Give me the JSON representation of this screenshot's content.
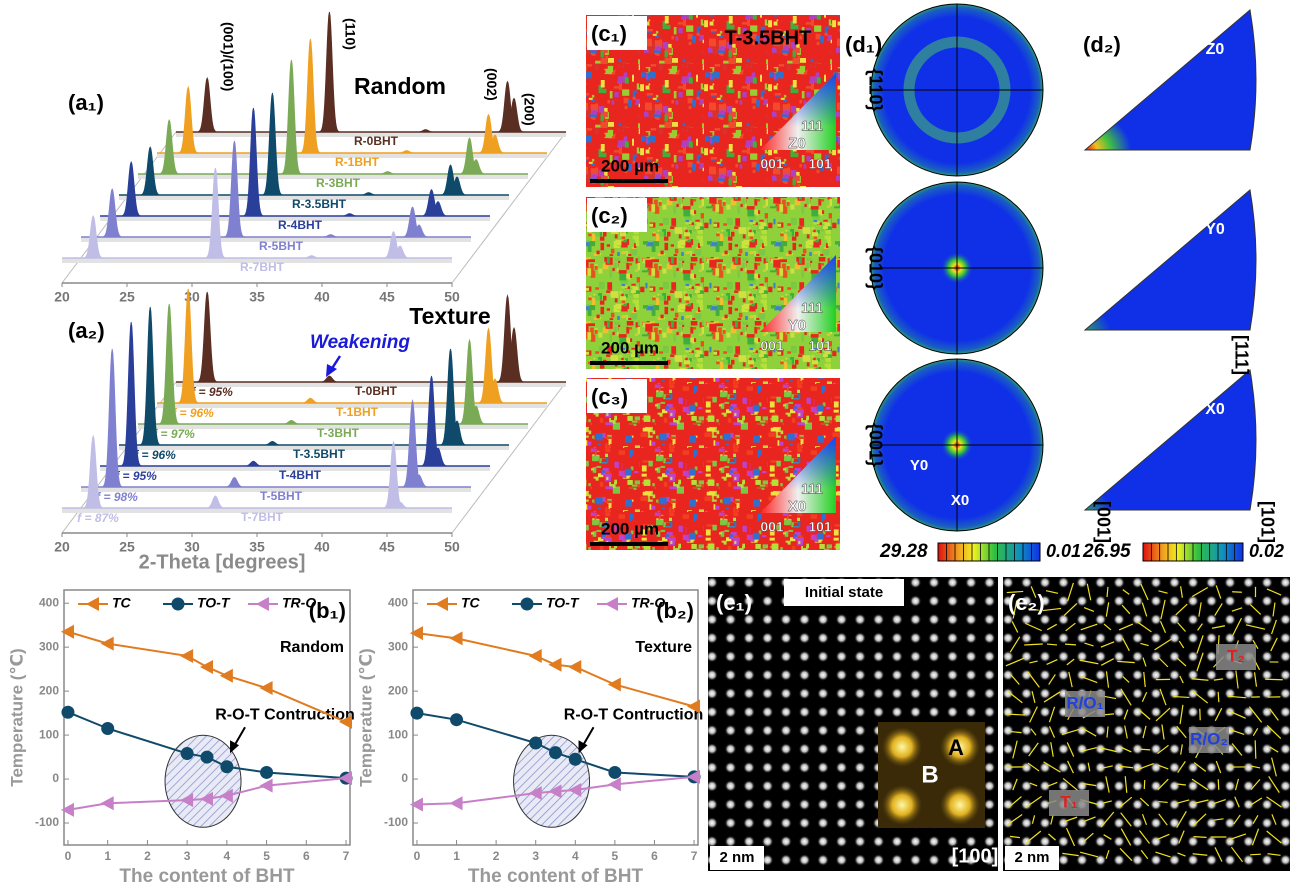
{
  "chart_data": [
    {
      "type": "waterfall",
      "panel_label": "(a₁)",
      "title": "Random",
      "x": [
        22.4,
        31.8,
        39.2,
        45.5,
        46.0
      ],
      "peak_labels": [
        "(001)/(100)",
        "(110)",
        null,
        "(002)",
        "(200)"
      ],
      "xlim": [
        20,
        50
      ],
      "xticks": [
        20,
        25,
        30,
        35,
        40,
        45,
        50
      ],
      "series": [
        {
          "name": "R-0BHT",
          "color": "#5a2e22",
          "values": [
            45,
            100,
            2,
            42,
            28
          ]
        },
        {
          "name": "R-1BHT",
          "color": "#f0a020",
          "values": [
            55,
            95,
            2,
            32,
            15
          ]
        },
        {
          "name": "R-3BHT",
          "color": "#7aaa55",
          "values": [
            45,
            95,
            2,
            30,
            12
          ]
        },
        {
          "name": "R-3.5BHT",
          "color": "#0f4a6a",
          "values": [
            40,
            85,
            2,
            25,
            15
          ]
        },
        {
          "name": "R-4BHT",
          "color": "#2a3f9a",
          "values": [
            45,
            90,
            2,
            22,
            12
          ]
        },
        {
          "name": "R-5BHT",
          "color": "#8080d0",
          "values": [
            40,
            80,
            2,
            25,
            10
          ]
        },
        {
          "name": "R-7BHT",
          "color": "#c0bde6",
          "values": [
            35,
            75,
            2,
            22,
            10
          ]
        }
      ]
    },
    {
      "type": "waterfall",
      "panel_label": "(a₂)",
      "title": "Texture",
      "annotation": "Weakening",
      "xlabel": "2-Theta [degrees]",
      "x": [
        22.4,
        31.8,
        39.2,
        45.5,
        46.0
      ],
      "xlim": [
        20,
        50
      ],
      "xticks": [
        20,
        25,
        30,
        35,
        40,
        45,
        50
      ],
      "series": [
        {
          "name": "T-0BHT",
          "annotation": "f = 95%",
          "color": "#5a2e22",
          "values": [
            75,
            5,
            0,
            72,
            45
          ]
        },
        {
          "name": "T-1BHT",
          "annotation": "f = 96%",
          "color": "#f0a020",
          "values": [
            95,
            4,
            0,
            62,
            20
          ]
        },
        {
          "name": "T-3BHT",
          "annotation": "f = 97%",
          "color": "#7aaa55",
          "values": [
            100,
            3,
            0,
            70,
            15
          ]
        },
        {
          "name": "T-3.5BHT",
          "annotation": "f = 96%",
          "color": "#0f4a6a",
          "values": [
            115,
            3,
            0,
            80,
            20
          ]
        },
        {
          "name": "T-4BHT",
          "annotation": "f = 95%",
          "color": "#2a3f9a",
          "values": [
            120,
            4,
            0,
            75,
            15
          ]
        },
        {
          "name": "T-5BHT",
          "annotation": "f = 98%",
          "color": "#8080d0",
          "values": [
            115,
            8,
            0,
            72,
            10
          ]
        },
        {
          "name": "T-7BHT",
          "annotation": "f = 87%",
          "color": "#c0bde6",
          "values": [
            60,
            10,
            0,
            55,
            5
          ]
        }
      ]
    },
    {
      "type": "line",
      "panel_label": "(b₁)",
      "title": "Random",
      "annotation": "R-O-T Contruction",
      "xlabel": "The content of BHT",
      "ylabel": "Temperature (℃)",
      "x": [
        0,
        1,
        3,
        3.5,
        4,
        5,
        7
      ],
      "xlim": [
        -0.1,
        7.1
      ],
      "xticks": [
        0,
        1,
        2,
        3,
        4,
        5,
        6,
        7
      ],
      "ylim": [
        -150,
        430
      ],
      "yticks": [
        -100,
        0,
        100,
        200,
        300,
        400
      ],
      "series": [
        {
          "name": "TC",
          "color": "#e07b20",
          "marker": "triangle-left",
          "values": [
            335,
            308,
            280,
            255,
            235,
            207,
            130
          ]
        },
        {
          "name": "TO-T",
          "color": "#0f4a6a",
          "marker": "circle",
          "values": [
            152,
            115,
            58,
            50,
            28,
            15,
            2
          ]
        },
        {
          "name": "TR-O",
          "color": "#c77fc7",
          "marker": "triangle-left",
          "values": [
            -70,
            -55,
            -48,
            -45,
            -38,
            -15,
            2
          ]
        }
      ]
    },
    {
      "type": "line",
      "panel_label": "(b₂)",
      "title": "Texture",
      "annotation": "R-O-T Contruction",
      "xlabel": "The content of BHT",
      "ylabel": "Temperature (℃)",
      "x": [
        0,
        1,
        3,
        3.5,
        4,
        5,
        7
      ],
      "xlim": [
        -0.1,
        7.1
      ],
      "xticks": [
        0,
        1,
        2,
        3,
        4,
        5,
        6,
        7
      ],
      "ylim": [
        -150,
        430
      ],
      "yticks": [
        -100,
        0,
        100,
        200,
        300,
        400
      ],
      "series": [
        {
          "name": "TC",
          "color": "#e07b20",
          "marker": "triangle-left",
          "values": [
            332,
            320,
            280,
            260,
            255,
            215,
            165
          ]
        },
        {
          "name": "TO-T",
          "color": "#0f4a6a",
          "marker": "circle",
          "values": [
            150,
            135,
            82,
            60,
            45,
            15,
            5
          ]
        },
        {
          "name": "TR-O",
          "color": "#c77fc7",
          "marker": "triangle-left",
          "values": [
            -58,
            -55,
            -32,
            -28,
            -25,
            -12,
            5
          ]
        }
      ]
    }
  ],
  "ebsd_maps": [
    {
      "panel_label": "(c₁)",
      "sample": "T-3.5BHT",
      "scale_bar": "200 µm",
      "ipf_labels": [
        "111",
        "001",
        "101"
      ],
      "axis": "Z0"
    },
    {
      "panel_label": "(c₂)",
      "scale_bar": "200 µm",
      "ipf_labels": [
        "111",
        "001",
        "101"
      ],
      "axis": "Y0"
    },
    {
      "panel_label": "(c₃)",
      "scale_bar": "200 µm",
      "ipf_labels": [
        "111",
        "001",
        "101"
      ],
      "axis": "X0"
    }
  ],
  "pole_figures": {
    "panel_label": "(d₁)",
    "planes": [
      "{110}",
      "{010}",
      "{001}"
    ],
    "axis_labels": [
      "Y0",
      "X0"
    ],
    "colorbar": {
      "max": 29.28,
      "min": 0.01
    }
  },
  "inverse_pole_figures": {
    "panel_label": "(d₂)",
    "axes": [
      "Z0",
      "Y0",
      "X0"
    ],
    "directions": [
      "[111]",
      "[001]",
      "[101]"
    ],
    "colorbar": {
      "max": 26.95,
      "min": 0.02
    }
  },
  "stem_images": [
    {
      "panel_label": "(e₁)",
      "state": "Initial state",
      "sites": [
        "A",
        "B"
      ],
      "scale_bar": "2 nm",
      "zone_axis": "[100]"
    },
    {
      "panel_label": "(e₂)",
      "scale_bar": "2 nm",
      "domains": [
        "T₂",
        "R/O₁",
        "R/O₂",
        "T₁"
      ]
    }
  ]
}
